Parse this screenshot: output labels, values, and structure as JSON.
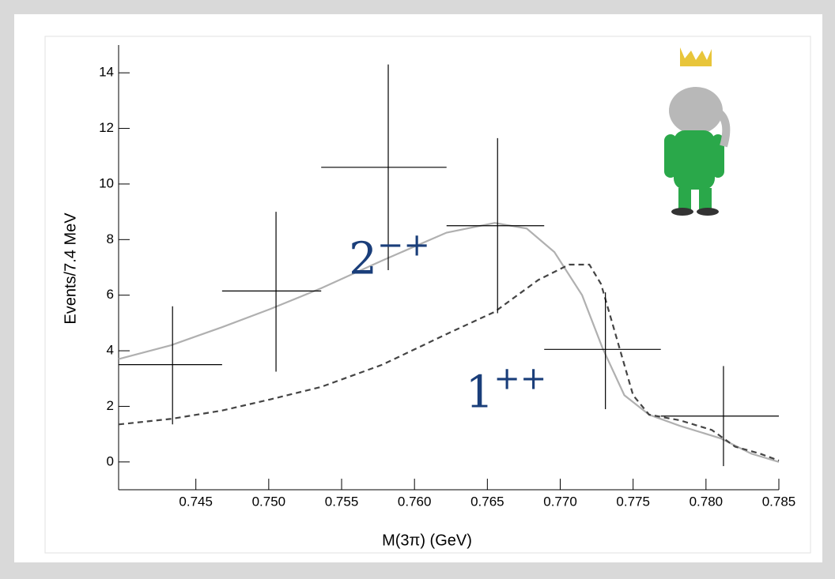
{
  "chart_data": {
    "type": "errorbar",
    "x_label": "M(3π) (GeV)",
    "y_label": "Events/7.4 MeV",
    "xlim": [
      0.7397,
      0.785
    ],
    "ylim": [
      -1,
      15
    ],
    "xticks": [
      0.745,
      0.75,
      0.755,
      0.76,
      0.765,
      0.77,
      0.775,
      0.78,
      0.785
    ],
    "xtick_labels": [
      "0.745",
      "0.750",
      "0.755",
      "0.760",
      "0.765",
      "0.770",
      "0.775",
      "0.780",
      "0.785"
    ],
    "yticks": [
      0,
      2,
      4,
      6,
      8,
      10,
      12,
      14
    ],
    "points": {
      "color": "#000000",
      "x": [
        0.7434,
        0.7505,
        0.7582,
        0.7657,
        0.7731,
        0.7812
      ],
      "x_low": [
        0.7397,
        0.7468,
        0.7536,
        0.7622,
        0.7689,
        0.7769
      ],
      "x_high": [
        0.7468,
        0.7536,
        0.7622,
        0.7689,
        0.7769,
        0.785
      ],
      "values": [
        3.5,
        6.15,
        10.6,
        8.5,
        4.05,
        1.65
      ],
      "y_low": [
        1.35,
        3.25,
        6.9,
        5.35,
        1.9,
        -0.15
      ],
      "y_high": [
        5.6,
        9.0,
        14.3,
        11.65,
        6.1,
        3.45
      ]
    },
    "curves": [
      {
        "color": "#b0b0b0",
        "dash": false,
        "x": [
          0.7397,
          0.7433,
          0.7468,
          0.7501,
          0.7536,
          0.7578,
          0.7622,
          0.7655,
          0.7677,
          0.7696,
          0.7715,
          0.7729,
          0.7744,
          0.7761,
          0.7782,
          0.781,
          0.7831,
          0.785
        ],
        "values": [
          3.7,
          4.2,
          4.85,
          5.5,
          6.25,
          7.25,
          8.25,
          8.6,
          8.4,
          7.55,
          6.0,
          4.1,
          2.4,
          1.7,
          1.3,
          0.85,
          0.3,
          0
        ]
      },
      {
        "color": "#444444",
        "dash": true,
        "x": [
          0.7397,
          0.7433,
          0.7468,
          0.7501,
          0.7536,
          0.7578,
          0.7622,
          0.7655,
          0.7685,
          0.7706,
          0.772,
          0.7728,
          0.7739,
          0.775,
          0.7761,
          0.7782,
          0.7804,
          0.782,
          0.7837,
          0.785
        ],
        "values": [
          1.35,
          1.55,
          1.85,
          2.25,
          2.7,
          3.5,
          4.6,
          5.4,
          6.55,
          7.1,
          7.1,
          6.4,
          4.4,
          2.4,
          1.7,
          1.5,
          1.15,
          0.55,
          0.3,
          0.05
        ]
      }
    ],
    "annotations": [
      {
        "text": "2",
        "sup": "−+",
        "color": "#1a3e7a",
        "x": 0.7555,
        "y": 7.2
      },
      {
        "text": "1",
        "sup": "++",
        "color": "#1a3e7a",
        "x": 0.7635,
        "y": 2.4
      }
    ]
  }
}
